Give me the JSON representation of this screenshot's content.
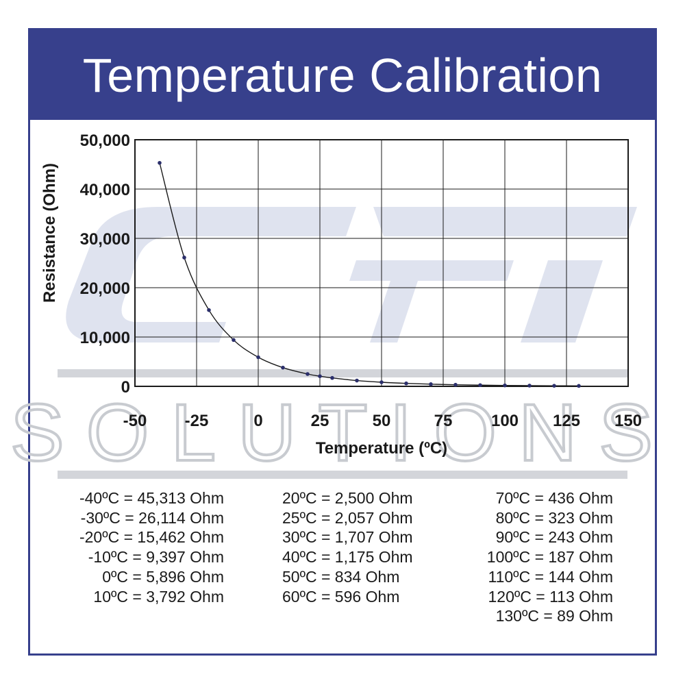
{
  "header": {
    "title": "Temperature Calibration"
  },
  "watermark": {
    "text": "SOLUTIONS",
    "color": "#c8cbd0",
    "logo_color": "#dfe3ef"
  },
  "colors": {
    "frame": "#37408c",
    "curve": "#1a1a1a",
    "points": "#2b2f6b"
  },
  "chart_data": {
    "type": "line",
    "title": "",
    "xlabel": "Temperature (ºC)",
    "ylabel": "Resistance (Ohm)",
    "xlim": [
      -50,
      150
    ],
    "ylim": [
      0,
      50000
    ],
    "x_ticks": [
      "-50",
      "-25",
      "0",
      "25",
      "50",
      "75",
      "100",
      "125",
      "150"
    ],
    "y_ticks": [
      "50,000",
      "40,000",
      "30,000",
      "20,000",
      "10,000",
      "0"
    ],
    "grid": true,
    "series": [
      {
        "x": [
          -40,
          -30,
          -20,
          -10,
          0,
          10,
          20,
          25,
          30,
          40,
          50,
          60,
          70,
          80,
          90,
          100,
          110,
          120,
          130
        ],
        "y": [
          45313,
          26114,
          15462,
          9397,
          5896,
          3792,
          2500,
          2057,
          1707,
          1175,
          834,
          596,
          436,
          323,
          243,
          187,
          144,
          113,
          89
        ]
      }
    ]
  },
  "table": {
    "col1": [
      "-40ºC = 45,313 Ohm",
      "-30ºC = 26,114 Ohm",
      "-20ºC = 15,462 Ohm",
      "-10ºC = 9,397 Ohm",
      "0ºC = 5,896 Ohm",
      "10ºC = 3,792 Ohm"
    ],
    "col2": [
      "20ºC = 2,500 Ohm",
      "25ºC = 2,057 Ohm",
      "30ºC = 1,707 Ohm",
      "40ºC = 1,175 Ohm",
      "50ºC = 834 Ohm",
      "60ºC = 596 Ohm"
    ],
    "col3": [
      "70ºC = 436 Ohm",
      "80ºC = 323 Ohm",
      "90ºC = 243 Ohm",
      "100ºC = 187 Ohm",
      "110ºC = 144 Ohm",
      "120ºC = 113 Ohm",
      "130ºC = 89 Ohm"
    ]
  }
}
